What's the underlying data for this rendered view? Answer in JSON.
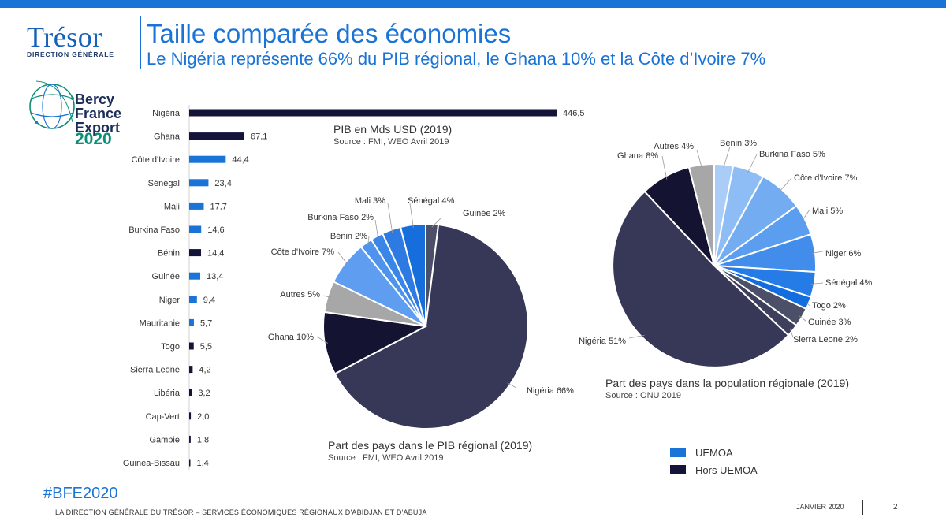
{
  "header": {
    "title": "Taille comparée des économies",
    "subtitle": "Le Nigéria représente 66% du PIB régional, le Ghana 10% et la Côte d’Ivoire 7%"
  },
  "logo": {
    "tresor": "Trésor",
    "direction": "DIRECTION GÉNÉRALE",
    "bfe_line1": "Bercy",
    "bfe_line2": "France",
    "bfe_line3": "Export",
    "bfe_year": "2020"
  },
  "colors": {
    "uemoa": "#1a73d6",
    "hors_uemoa": "#14143a"
  },
  "chart_data": [
    {
      "type": "bar",
      "orientation": "horizontal",
      "title": "PIB en Mds USD (2019)",
      "source": "Source : FMI, WEO Avril 2019",
      "categories": [
        "Nigéria",
        "Ghana",
        "Côte d'Ivoire",
        "Sénégal",
        "Mali",
        "Burkina Faso",
        "Bénin",
        "Guinée",
        "Niger",
        "Mauritanie",
        "Togo",
        "Sierra Leone",
        "Libéria",
        "Cap-Vert",
        "Gambie",
        "Guinea-Bissau"
      ],
      "values": [
        446.5,
        67.1,
        44.4,
        23.4,
        17.7,
        14.6,
        14.4,
        13.4,
        9.4,
        5.7,
        5.5,
        4.2,
        3.2,
        2.0,
        1.8,
        1.4
      ],
      "value_labels": [
        "446,5",
        "67,1",
        "44,4",
        "23,4",
        "17,7",
        "14,6",
        "14,4",
        "13,4",
        "9,4",
        "5,7",
        "5,5",
        "4,2",
        "3,2",
        "2,0",
        "1,8",
        "1,4"
      ],
      "groups": [
        "hors",
        "hors",
        "uemoa",
        "uemoa",
        "uemoa",
        "uemoa",
        "hors",
        "uemoa",
        "uemoa",
        "uemoa",
        "hors",
        "hors",
        "hors",
        "hors",
        "hors",
        "hors"
      ]
    },
    {
      "type": "pie",
      "title": "Part des pays dans le PIB régional (2019)",
      "source": "Source : FMI, WEO Avril 2019",
      "slices": [
        {
          "label": "Guinée",
          "pct_label": "2%",
          "value": 2,
          "color": "#4b4f67"
        },
        {
          "label": "Nigéria",
          "pct_label": "66%",
          "value": 66,
          "color": "#373758"
        },
        {
          "label": "Ghana",
          "pct_label": "10%",
          "value": 10,
          "color": "#141432"
        },
        {
          "label": "Autres",
          "pct_label": "5%",
          "value": 5,
          "color": "#a7a7a7"
        },
        {
          "label": "Côte d'Ivoire",
          "pct_label": "7%",
          "value": 7,
          "color": "#5f9df0"
        },
        {
          "label": "Bénin",
          "pct_label": "2%",
          "value": 2,
          "color": "#4f94ec"
        },
        {
          "label": "Burkina Faso",
          "pct_label": "2%",
          "value": 2,
          "color": "#3a86e7"
        },
        {
          "label": "Mali",
          "pct_label": "3%",
          "value": 3,
          "color": "#2c7ae2"
        },
        {
          "label": "Sénégal",
          "pct_label": "4%",
          "value": 4,
          "color": "#166edc"
        }
      ]
    },
    {
      "type": "pie",
      "title": "Part des pays dans la population régionale (2019)",
      "source": "Source : ONU 2019",
      "slices": [
        {
          "label": "Bénin",
          "pct_label": "3%",
          "value": 3,
          "color": "#a9cdf7"
        },
        {
          "label": "Burkina Faso",
          "pct_label": "5%",
          "value": 5,
          "color": "#8ebcf4"
        },
        {
          "label": "Côte d'Ivoire",
          "pct_label": "7%",
          "value": 7,
          "color": "#74acf1"
        },
        {
          "label": "Mali",
          "pct_label": "5%",
          "value": 5,
          "color": "#5b9def"
        },
        {
          "label": "Niger",
          "pct_label": "6%",
          "value": 6,
          "color": "#428dec"
        },
        {
          "label": "Sénégal",
          "pct_label": "4%",
          "value": 4,
          "color": "#267ce6"
        },
        {
          "label": "Togo",
          "pct_label": "2%",
          "value": 2,
          "color": "#126ddf"
        },
        {
          "label": "Guinée",
          "pct_label": "3%",
          "value": 3,
          "color": "#4b4f67"
        },
        {
          "label": "Sierra Leone",
          "pct_label": "2%",
          "value": 2,
          "color": "#3e3f5c"
        },
        {
          "label": "Nigéria",
          "pct_label": "51%",
          "value": 51,
          "color": "#373758"
        },
        {
          "label": "Ghana",
          "pct_label": "8%",
          "value": 8,
          "color": "#141432"
        },
        {
          "label": "Autres",
          "pct_label": "4%",
          "value": 4,
          "color": "#a7a7a7"
        }
      ]
    }
  ],
  "legend": {
    "uemoa": "UEMOA",
    "hors": "Hors UEMOA"
  },
  "footer": {
    "hashtag": "#BFE2020",
    "text": "LA DIRECTION GÉNÉRALE DU TRÉSOR – SERVICES ÉCONOMIQUES RÉGIONAUX D'ABIDJAN ET D'ABUJA",
    "date": "JANVIER 2020",
    "page": "2"
  }
}
